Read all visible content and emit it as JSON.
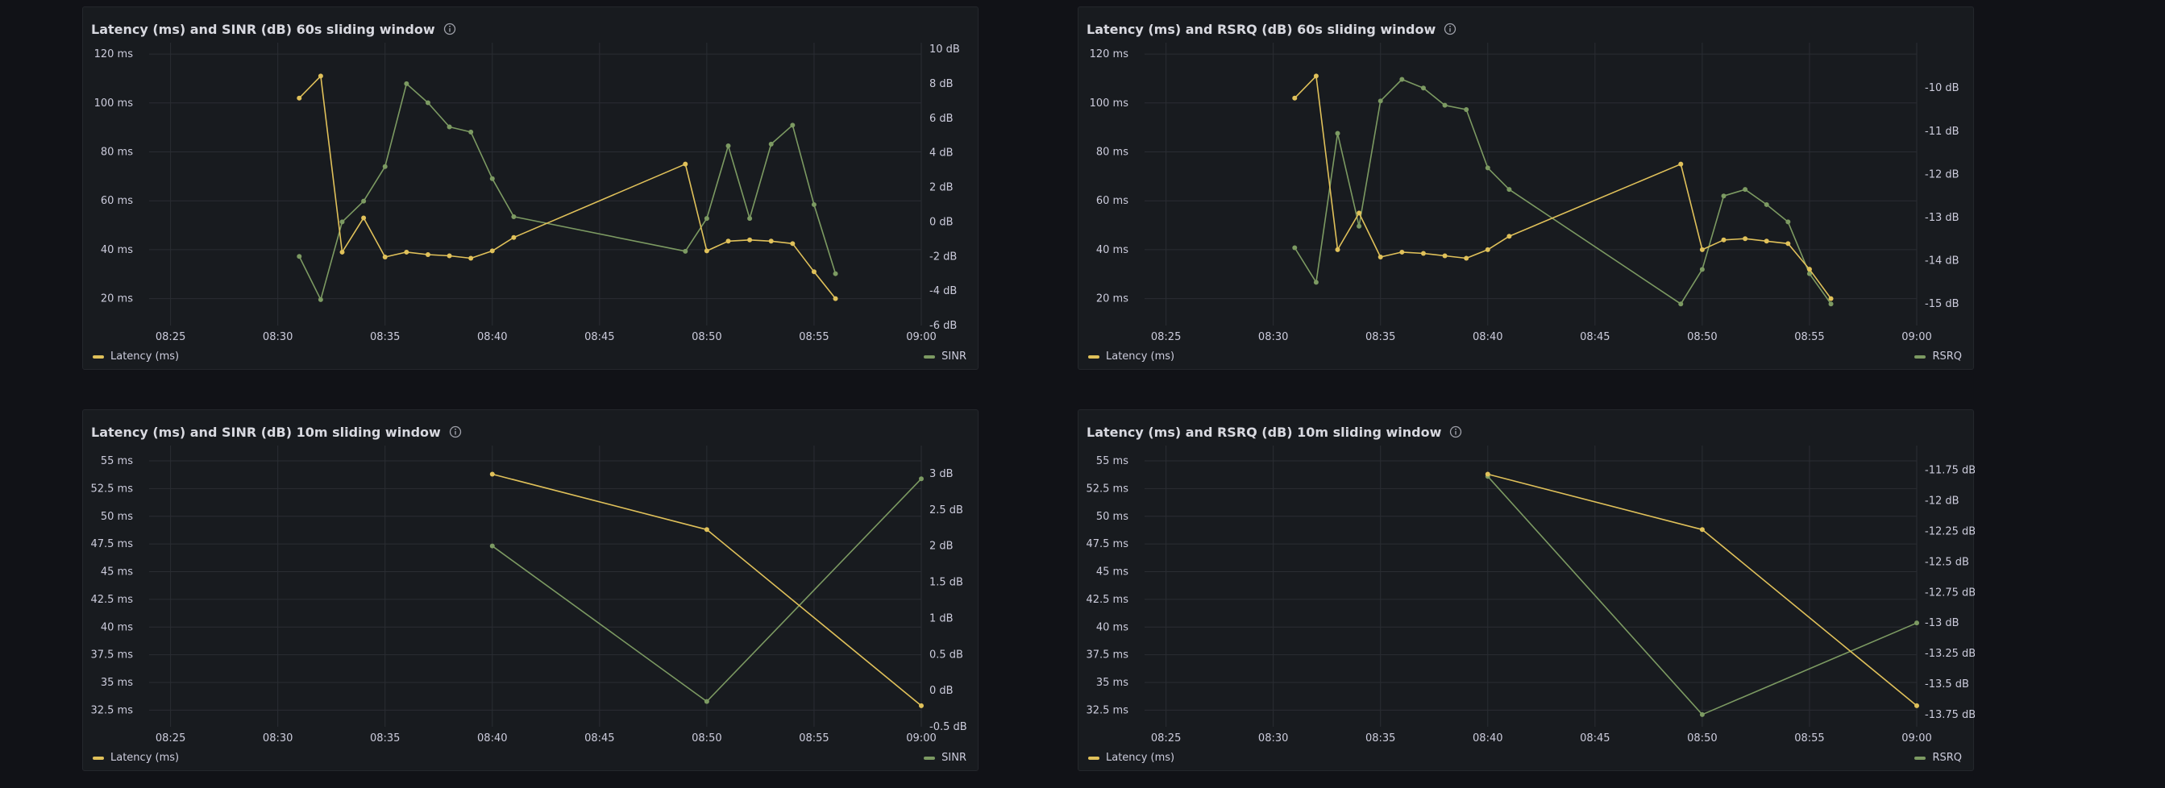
{
  "colors": {
    "background": "#111217",
    "panel": "#181b1f",
    "grid": "#2a2d33",
    "text": "#ccccdc",
    "latency": "#e0c15a",
    "secondary": "#7c9a62"
  },
  "icons": {
    "info": "info-circle-icon"
  },
  "panels": [
    {
      "title": "Latency (ms) and SINR (dB) 60s sliding window",
      "legend_left": "Latency (ms)",
      "legend_right": "SINR",
      "chart_data": {
        "type": "line",
        "x_ticks": [
          "08:25",
          "08:30",
          "08:35",
          "08:40",
          "08:45",
          "08:50",
          "08:55",
          "09:00"
        ],
        "xlim": [
          "08:24",
          "09:00"
        ],
        "y_left": {
          "ticks": [
            "120 ms",
            "100 ms",
            "80 ms",
            "60 ms",
            "40 ms",
            "20 ms"
          ],
          "tick_values": [
            120,
            100,
            80,
            60,
            40,
            20
          ],
          "lim": [
            9,
            122
          ],
          "unit": "ms"
        },
        "y_right": {
          "ticks": [
            "10 dB",
            "8 dB",
            "6 dB",
            "4 dB",
            "2 dB",
            "0 dB",
            "-2 dB",
            "-4 dB",
            "-6 dB"
          ],
          "tick_values": [
            10,
            8,
            6,
            4,
            2,
            0,
            -2,
            -4,
            -6
          ],
          "lim": [
            -6,
            10
          ],
          "unit": "dB"
        },
        "series": [
          {
            "name": "Latency (ms)",
            "axis": "left",
            "x": [
              "08:31",
              "08:32",
              "08:33",
              "08:34",
              "08:35",
              "08:36",
              "08:37",
              "08:38",
              "08:39",
              "08:40",
              "08:41",
              "08:49",
              "08:50",
              "08:51",
              "08:52",
              "08:53",
              "08:54",
              "08:55",
              "08:56"
            ],
            "values": [
              102,
              111,
              39,
              53,
              37,
              39,
              38,
              37.5,
              36.5,
              39.5,
              45,
              75,
              39.5,
              43.5,
              44,
              43.5,
              42.5,
              31,
              20
            ]
          },
          {
            "name": "SINR",
            "axis": "right",
            "x": [
              "08:31",
              "08:32",
              "08:33",
              "08:34",
              "08:35",
              "08:36",
              "08:37",
              "08:38",
              "08:39",
              "08:40",
              "08:41",
              "08:49",
              "08:50",
              "08:51",
              "08:52",
              "08:53",
              "08:54",
              "08:55",
              "08:56"
            ],
            "values": [
              -2,
              -4.5,
              0,
              1.2,
              3.2,
              8,
              6.9,
              5.5,
              5.2,
              2.5,
              0.3,
              -1.7,
              0.2,
              4.4,
              0.2,
              4.5,
              5.6,
              1,
              -3
            ]
          }
        ]
      }
    },
    {
      "title": "Latency (ms) and RSRQ (dB) 60s sliding window",
      "legend_left": "Latency (ms)",
      "legend_right": "RSRQ",
      "chart_data": {
        "type": "line",
        "x_ticks": [
          "08:25",
          "08:30",
          "08:35",
          "08:40",
          "08:45",
          "08:50",
          "08:55",
          "09:00"
        ],
        "xlim": [
          "08:24",
          "09:00"
        ],
        "y_left": {
          "ticks": [
            "120 ms",
            "100 ms",
            "80 ms",
            "60 ms",
            "40 ms",
            "20 ms"
          ],
          "tick_values": [
            120,
            100,
            80,
            60,
            40,
            20
          ],
          "lim": [
            9,
            122
          ],
          "unit": "ms"
        },
        "y_right": {
          "ticks": [
            "-10 dB",
            "-11 dB",
            "-12 dB",
            "-13 dB",
            "-14 dB",
            "-15 dB"
          ],
          "tick_values": [
            -10,
            -11,
            -12,
            -13,
            -14,
            -15
          ],
          "lim": [
            -15.5,
            -9.1
          ],
          "unit": "dB"
        },
        "series": [
          {
            "name": "Latency (ms)",
            "axis": "left",
            "x": [
              "08:31",
              "08:32",
              "08:33",
              "08:34",
              "08:35",
              "08:36",
              "08:37",
              "08:38",
              "08:39",
              "08:40",
              "08:41",
              "08:49",
              "08:50",
              "08:51",
              "08:52",
              "08:53",
              "08:54",
              "08:55",
              "08:56"
            ],
            "values": [
              102,
              111,
              40,
              55,
              37,
              39,
              38.5,
              37.5,
              36.5,
              40,
              45.5,
              75,
              40,
              44,
              44.5,
              43.5,
              42.5,
              32,
              20
            ]
          },
          {
            "name": "RSRQ",
            "axis": "right",
            "x": [
              "08:31",
              "08:32",
              "08:33",
              "08:34",
              "08:35",
              "08:36",
              "08:37",
              "08:38",
              "08:39",
              "08:40",
              "08:41",
              "08:49",
              "08:50",
              "08:51",
              "08:52",
              "08:53",
              "08:54",
              "08:55",
              "08:56"
            ],
            "values": [
              -13.7,
              -14.5,
              -11.05,
              -13.2,
              -10.3,
              -9.8,
              -10.0,
              -10.4,
              -10.5,
              -11.85,
              -12.35,
              -15,
              -14.2,
              -12.5,
              -12.35,
              -12.7,
              -13.1,
              -14.3,
              -15
            ]
          }
        ]
      }
    },
    {
      "title": "Latency (ms) and SINR (dB) 10m sliding window",
      "legend_left": "Latency (ms)",
      "legend_right": "SINR",
      "chart_data": {
        "type": "line",
        "x_ticks": [
          "08:25",
          "08:30",
          "08:35",
          "08:40",
          "08:45",
          "08:50",
          "08:55",
          "09:00"
        ],
        "xlim": [
          "08:24",
          "09:00"
        ],
        "y_left": {
          "ticks": [
            "55 ms",
            "52.5 ms",
            "50 ms",
            "47.5 ms",
            "45 ms",
            "42.5 ms",
            "40 ms",
            "37.5 ms",
            "35 ms",
            "32.5 ms"
          ],
          "tick_values": [
            55,
            52.5,
            50,
            47.5,
            45,
            42.5,
            40,
            37.5,
            35,
            32.5
          ],
          "lim": [
            31,
            55.8
          ],
          "unit": "ms"
        },
        "y_right": {
          "ticks": [
            "3 dB",
            "2.5 dB",
            "2 dB",
            "1.5 dB",
            "1 dB",
            "0.5 dB",
            "0 dB",
            "-0.5 dB"
          ],
          "tick_values": [
            3,
            2.5,
            2,
            1.5,
            1,
            0.5,
            0,
            -0.5
          ],
          "lim": [
            -0.5,
            3.3
          ],
          "unit": "dB"
        },
        "series": [
          {
            "name": "Latency (ms)",
            "axis": "left",
            "x": [
              "08:40",
              "08:50",
              "09:00"
            ],
            "values": [
              53.8,
              48.8,
              32.9
            ]
          },
          {
            "name": "SINR",
            "axis": "right",
            "x": [
              "08:40",
              "08:50",
              "09:00"
            ],
            "values": [
              2.0,
              -0.15,
              2.93
            ]
          }
        ]
      }
    },
    {
      "title": "Latency (ms) and RSRQ (dB) 10m sliding window",
      "legend_left": "Latency (ms)",
      "legend_right": "RSRQ",
      "chart_data": {
        "type": "line",
        "x_ticks": [
          "08:25",
          "08:30",
          "08:35",
          "08:40",
          "08:45",
          "08:50",
          "08:55",
          "09:00"
        ],
        "xlim": [
          "08:24",
          "09:00"
        ],
        "y_left": {
          "ticks": [
            "55 ms",
            "52.5 ms",
            "50 ms",
            "47.5 ms",
            "45 ms",
            "42.5 ms",
            "40 ms",
            "37.5 ms",
            "35 ms",
            "32.5 ms"
          ],
          "tick_values": [
            55,
            52.5,
            50,
            47.5,
            45,
            42.5,
            40,
            37.5,
            35,
            32.5
          ],
          "lim": [
            31,
            55.8
          ],
          "unit": "ms"
        },
        "y_right": {
          "ticks": [
            "-11.75 dB",
            "-12 dB",
            "-12.25 dB",
            "-12.5 dB",
            "-12.75 dB",
            "-13 dB",
            "-13.25 dB",
            "-13.5 dB",
            "-13.75 dB"
          ],
          "tick_values": [
            -11.75,
            -12,
            -12.25,
            -12.5,
            -12.75,
            -13,
            -13.25,
            -13.5,
            -13.75
          ],
          "lim": [
            -13.85,
            -11.6
          ],
          "unit": "dB"
        },
        "series": [
          {
            "name": "Latency (ms)",
            "axis": "left",
            "x": [
              "08:40",
              "08:50",
              "09:00"
            ],
            "values": [
              53.8,
              48.8,
              32.9
            ]
          },
          {
            "name": "RSRQ",
            "axis": "right",
            "x": [
              "08:40",
              "08:50",
              "09:00"
            ],
            "values": [
              -11.8,
              -13.75,
              -13.0
            ]
          }
        ]
      }
    }
  ]
}
